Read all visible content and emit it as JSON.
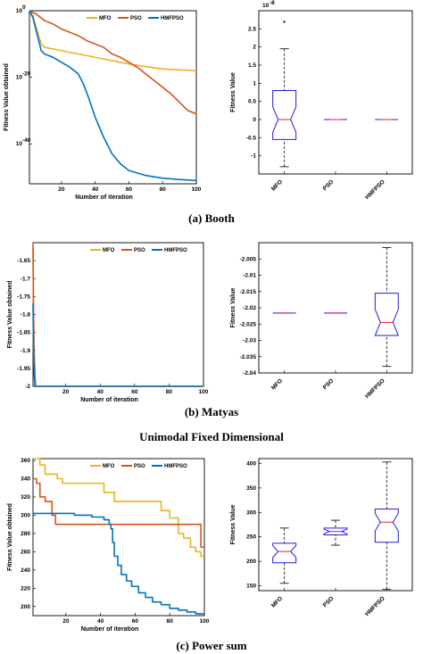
{
  "colors": {
    "MFO": "#EDB120",
    "PSO": "#D95319",
    "HMFPSO": "#0072BD",
    "box": "#1f1fd6",
    "median": "#e8202a",
    "outlier": "#e8202a"
  },
  "chart_data": [
    {
      "type": "line",
      "ylabel": "Fitness Value obtained",
      "xlabel": "Number of iteration",
      "xlim": [
        1,
        100
      ],
      "xticks": [
        20,
        40,
        60,
        80,
        100
      ],
      "yscale": "log",
      "ylim": [
        1e-52,
        1.0
      ],
      "ytick_labels": [
        "10",
        "10",
        "10"
      ],
      "ytick_exps": [
        "0",
        "-20",
        "-40"
      ],
      "ytick_values": [
        0,
        -20,
        -40
      ],
      "legend": [
        "MFO",
        "PSO",
        "HMFPSO"
      ],
      "series": [
        {
          "name": "MFO",
          "x": [
            1,
            3,
            5,
            8,
            10,
            15,
            20,
            30,
            40,
            50,
            60,
            70,
            80,
            90,
            100
          ],
          "log10y": [
            0,
            -1.5,
            -5,
            -10,
            -11,
            -11.5,
            -12,
            -13,
            -14,
            -15,
            -16,
            -16.8,
            -17.5,
            -17.8,
            -18
          ]
        },
        {
          "name": "PSO",
          "x": [
            1,
            5,
            10,
            15,
            20,
            25,
            30,
            35,
            40,
            45,
            50,
            55,
            60,
            65,
            70,
            75,
            80,
            85,
            90,
            95,
            100
          ],
          "log10y": [
            0,
            -1,
            -3,
            -4,
            -5.5,
            -6.5,
            -7.5,
            -9,
            -10,
            -11,
            -13,
            -14,
            -15.5,
            -17,
            -19,
            -21,
            -23,
            -25,
            -27.5,
            -30,
            -31
          ]
        },
        {
          "name": "HMFPSO",
          "x": [
            1,
            3,
            5,
            8,
            10,
            15,
            20,
            25,
            30,
            33,
            36,
            40,
            45,
            50,
            55,
            60,
            70,
            80,
            90,
            100
          ],
          "log10y": [
            0,
            -2,
            -6,
            -12,
            -13,
            -14,
            -15.5,
            -17,
            -19,
            -22,
            -26,
            -32,
            -38,
            -43,
            -46,
            -48,
            -49.5,
            -50.3,
            -50.7,
            -51
          ]
        }
      ]
    },
    {
      "type": "box",
      "ylabel": "Fitness Value",
      "multiplier_base": "10",
      "multiplier_exp": "-8",
      "ylim": [
        -1.5,
        3.0
      ],
      "yticks": [
        -1,
        -0.5,
        0,
        0.5,
        1,
        1.5,
        2,
        2.5
      ],
      "ytick_labels": [
        "-1",
        "-0.5",
        "0",
        "0.5",
        "1",
        "1.5",
        "2",
        "2.5"
      ],
      "categories": [
        "MFO",
        "PSO",
        "HMFPSO"
      ],
      "boxes": [
        {
          "name": "MFO",
          "whisker_low": -1.3,
          "q1": -0.55,
          "median": 0.0,
          "q3": 0.8,
          "whisker_high": 1.95,
          "notch": 0.35,
          "outliers": [
            2.7
          ]
        },
        {
          "name": "PSO",
          "whisker_low": 0,
          "q1": 0,
          "median": 0,
          "q3": 0,
          "whisker_high": 0,
          "notch": 0,
          "outliers": []
        },
        {
          "name": "HMFPSO",
          "whisker_low": 0,
          "q1": 0,
          "median": 0,
          "q3": 0,
          "whisker_high": 0,
          "notch": 0,
          "outliers": []
        }
      ]
    },
    {
      "type": "line",
      "ylabel": "Fitness Value obtained",
      "xlabel": "Number of iteration",
      "xlim": [
        1,
        100
      ],
      "xticks": [
        20,
        40,
        60,
        80,
        100
      ],
      "ylim": [
        -2.0,
        -1.6
      ],
      "yticks": [
        -2,
        -1.95,
        -1.9,
        -1.85,
        -1.8,
        -1.75,
        -1.7,
        -1.65
      ],
      "ytick_labels": [
        "-2",
        "-1.95",
        "-1.9",
        "-1.85",
        "-1.8",
        "-1.75",
        "-1.7",
        "-1.65"
      ],
      "legend": [
        "MFO",
        "PSO",
        "HMFPSO"
      ],
      "series": [
        {
          "name": "MFO",
          "x": [
            1,
            1.3,
            1.8,
            2.5,
            100
          ],
          "y": [
            -1.62,
            -1.8,
            -1.95,
            -2.0,
            -2.0
          ]
        },
        {
          "name": "PSO",
          "x": [
            1,
            1.2,
            1.6,
            2.4,
            100
          ],
          "y": [
            -1.6,
            -1.75,
            -1.9,
            -2.0,
            -2.0
          ]
        },
        {
          "name": "HMFPSO",
          "x": [
            1,
            1.3,
            1.7,
            2.2,
            100
          ],
          "y": [
            -1.77,
            -1.9,
            -1.97,
            -2.0,
            -2.0
          ]
        }
      ]
    },
    {
      "type": "box",
      "ylabel": "Fitness Value",
      "ylim": [
        -2.04,
        -2.0
      ],
      "yticks": [
        -2.04,
        -2.035,
        -2.03,
        -2.025,
        -2.02,
        -2.015,
        -2.01,
        -2.005
      ],
      "ytick_labels": [
        "-2.04",
        "-2.035",
        "-2.03",
        "-2.025",
        "-2.02",
        "-2.015",
        "-2.01",
        "-2.005"
      ],
      "categories": [
        "MFO",
        "PSO",
        "HMFPSO"
      ],
      "boxes": [
        {
          "name": "MFO",
          "whisker_low": -2.0216,
          "q1": -2.0216,
          "median": -2.0216,
          "q3": -2.0216,
          "whisker_high": -2.0216,
          "notch": 0,
          "outliers": []
        },
        {
          "name": "PSO",
          "whisker_low": -2.0216,
          "q1": -2.0216,
          "median": -2.0216,
          "q3": -2.0216,
          "whisker_high": -2.0216,
          "notch": 0,
          "outliers": []
        },
        {
          "name": "HMFPSO",
          "whisker_low": -2.038,
          "q1": -2.0285,
          "median": -2.0245,
          "q3": -2.0155,
          "whisker_high": -2.0015,
          "notch": 0.004,
          "outliers": []
        }
      ]
    },
    {
      "type": "line",
      "ylabel": "Fitness Value obtained",
      "xlabel": "Number of iteration",
      "xlim": [
        1,
        100
      ],
      "xticks": [
        20,
        40,
        60,
        80,
        100
      ],
      "ylim": [
        190,
        362
      ],
      "yticks": [
        200,
        220,
        240,
        260,
        280,
        300,
        320,
        340,
        360
      ],
      "ytick_labels": [
        "200",
        "220",
        "240",
        "260",
        "280",
        "300",
        "320",
        "340",
        "360"
      ],
      "legend": [
        "MFO",
        "PSO",
        "HMFPSO"
      ],
      "series": [
        {
          "name": "MFO",
          "x": [
            1,
            5,
            5,
            8,
            8,
            15,
            15,
            18,
            18,
            42,
            42,
            48,
            48,
            75,
            75,
            80,
            80,
            85,
            85,
            88,
            88,
            92,
            92,
            95,
            95,
            98,
            98,
            100
          ],
          "y": [
            362,
            362,
            355,
            355,
            345,
            345,
            340,
            340,
            335,
            335,
            325,
            325,
            315,
            315,
            305,
            305,
            297,
            297,
            280,
            280,
            275,
            275,
            265,
            265,
            260,
            260,
            255,
            255
          ]
        },
        {
          "name": "PSO",
          "x": [
            1,
            3,
            3,
            5,
            5,
            8,
            8,
            12,
            12,
            14,
            14,
            98,
            98,
            100
          ],
          "y": [
            340,
            340,
            335,
            335,
            320,
            320,
            315,
            315,
            300,
            300,
            290,
            290,
            265,
            265
          ]
        },
        {
          "name": "HMFPSO",
          "x": [
            1,
            25,
            25,
            35,
            35,
            42,
            42,
            45,
            45,
            46,
            46,
            47,
            47,
            48,
            48,
            50,
            50,
            52,
            52,
            55,
            55,
            58,
            58,
            62,
            62,
            66,
            66,
            70,
            70,
            75,
            75,
            80,
            80,
            85,
            85,
            90,
            90,
            95,
            95,
            100
          ],
          "y": [
            302,
            302,
            300,
            300,
            298,
            298,
            295,
            295,
            290,
            290,
            285,
            285,
            270,
            270,
            255,
            255,
            245,
            245,
            235,
            235,
            228,
            228,
            222,
            222,
            215,
            215,
            210,
            210,
            205,
            205,
            202,
            202,
            198,
            198,
            196,
            196,
            194,
            194,
            192,
            192
          ]
        }
      ]
    },
    {
      "type": "box",
      "ylabel": "Fitness Value",
      "ylim": [
        140,
        410
      ],
      "yticks": [
        150,
        200,
        250,
        300,
        350,
        400
      ],
      "ytick_labels": [
        "150",
        "200",
        "250",
        "300",
        "350",
        "400"
      ],
      "categories": [
        "MFO",
        "PSO",
        "HMFPSO"
      ],
      "boxes": [
        {
          "name": "MFO",
          "whisker_low": 155,
          "q1": 197,
          "median": 220,
          "q3": 237,
          "whisker_high": 268,
          "notch": 12,
          "outliers": []
        },
        {
          "name": "PSO",
          "whisker_low": 233,
          "q1": 254,
          "median": 261,
          "q3": 268,
          "whisker_high": 284,
          "notch": 5,
          "outliers": []
        },
        {
          "name": "HMFPSO",
          "whisker_low": 143,
          "q1": 239,
          "median": 280,
          "q3": 307,
          "whisker_high": 403,
          "notch": 18,
          "outliers": []
        }
      ]
    }
  ],
  "captions": {
    "a": "(a) Booth",
    "b": "(b) Matyas",
    "section": "Unimodal Fixed Dimensional",
    "c": "(c) Power sum"
  }
}
